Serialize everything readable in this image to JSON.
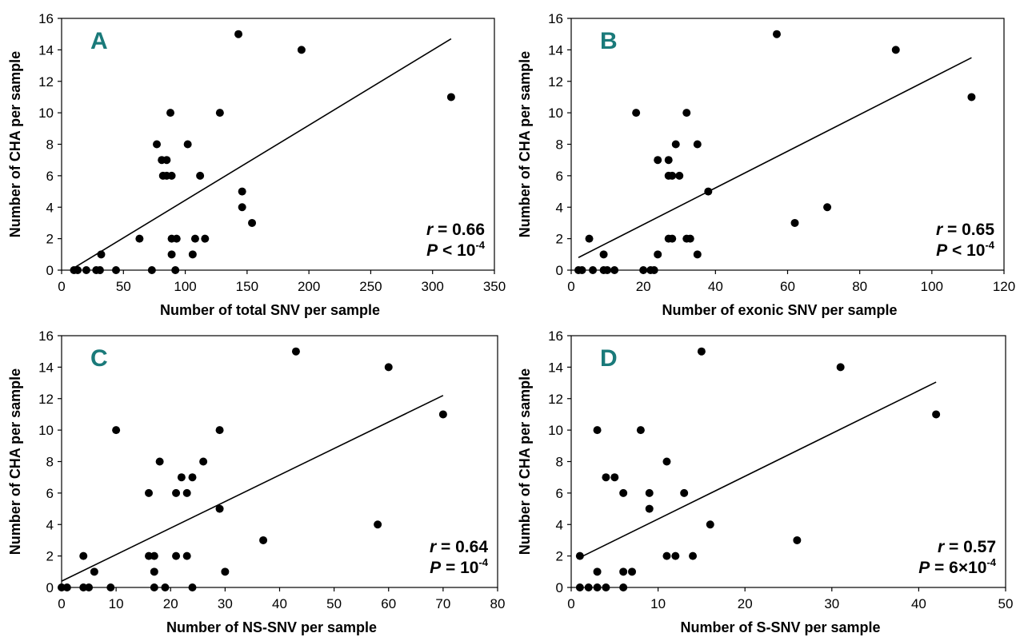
{
  "figure": {
    "accent": "#1a7a7a",
    "point_color": "#000000"
  },
  "chart_data": [
    {
      "panel": "A",
      "type": "scatter",
      "xlabel": "Number of total SNV per sample",
      "ylabel": "Number of CHA per sample",
      "xlim": [
        0,
        350
      ],
      "ylim": [
        0,
        16
      ],
      "xticks": [
        0,
        50,
        100,
        150,
        200,
        250,
        300,
        350
      ],
      "yticks": [
        0,
        2,
        4,
        6,
        8,
        10,
        12,
        14,
        16
      ],
      "points": [
        [
          10,
          0
        ],
        [
          13,
          0
        ],
        [
          20,
          0
        ],
        [
          28,
          0
        ],
        [
          31,
          0
        ],
        [
          44,
          0
        ],
        [
          73,
          0
        ],
        [
          92,
          0
        ],
        [
          32,
          1
        ],
        [
          89,
          1
        ],
        [
          106,
          1
        ],
        [
          63,
          2
        ],
        [
          89,
          2
        ],
        [
          93,
          2
        ],
        [
          108,
          2
        ],
        [
          116,
          2
        ],
        [
          154,
          3
        ],
        [
          146,
          4
        ],
        [
          146,
          5
        ],
        [
          82,
          6
        ],
        [
          85,
          6
        ],
        [
          89,
          6
        ],
        [
          112,
          6
        ],
        [
          81,
          7
        ],
        [
          85,
          7
        ],
        [
          77,
          8
        ],
        [
          102,
          8
        ],
        [
          88,
          10
        ],
        [
          128,
          10
        ],
        [
          315,
          11
        ],
        [
          194,
          14
        ],
        [
          143,
          15
        ]
      ],
      "trendline": {
        "x": [
          8,
          315
        ],
        "y": [
          0.05,
          14.7
        ]
      },
      "stats": {
        "r_label": "r",
        "r_value": " = 0.66",
        "p_label": "P",
        "p_rel": " < 10",
        "p_exp": "-4"
      }
    },
    {
      "panel": "B",
      "type": "scatter",
      "xlabel": "Number of exonic SNV per sample",
      "ylabel": "Number of CHA per sample",
      "xlim": [
        0,
        120
      ],
      "ylim": [
        0,
        16
      ],
      "xticks": [
        0,
        20,
        40,
        60,
        80,
        100,
        120
      ],
      "yticks": [
        0,
        2,
        4,
        6,
        8,
        10,
        12,
        14,
        16
      ],
      "points": [
        [
          2,
          0
        ],
        [
          3,
          0
        ],
        [
          6,
          0
        ],
        [
          9,
          0
        ],
        [
          10,
          0
        ],
        [
          12,
          0
        ],
        [
          20,
          0
        ],
        [
          22,
          0
        ],
        [
          23,
          0
        ],
        [
          9,
          1
        ],
        [
          24,
          1
        ],
        [
          35,
          1
        ],
        [
          5,
          2
        ],
        [
          27,
          2
        ],
        [
          28,
          2
        ],
        [
          32,
          2
        ],
        [
          33,
          2
        ],
        [
          62,
          3
        ],
        [
          71,
          4
        ],
        [
          38,
          5
        ],
        [
          27,
          6
        ],
        [
          28,
          6
        ],
        [
          30,
          6
        ],
        [
          24,
          7
        ],
        [
          27,
          7
        ],
        [
          29,
          8
        ],
        [
          35,
          8
        ],
        [
          18,
          10
        ],
        [
          32,
          10
        ],
        [
          111,
          11
        ],
        [
          90,
          14
        ],
        [
          57,
          15
        ]
      ],
      "trendline": {
        "x": [
          2,
          111
        ],
        "y": [
          0.8,
          13.5
        ]
      },
      "stats": {
        "r_label": "r",
        "r_value": " = 0.65",
        "p_label": "P",
        "p_rel": " < 10",
        "p_exp": "-4"
      }
    },
    {
      "panel": "C",
      "type": "scatter",
      "xlabel": "Number of NS-SNV per sample",
      "ylabel": "Number of CHA per sample",
      "xlim": [
        0,
        80
      ],
      "ylim": [
        0,
        16
      ],
      "xticks": [
        0,
        10,
        20,
        30,
        40,
        50,
        60,
        70,
        80
      ],
      "yticks": [
        0,
        2,
        4,
        6,
        8,
        10,
        12,
        14,
        16
      ],
      "points": [
        [
          0,
          0
        ],
        [
          1,
          0
        ],
        [
          4,
          0
        ],
        [
          5,
          0
        ],
        [
          9,
          0
        ],
        [
          17,
          0
        ],
        [
          19,
          0
        ],
        [
          24,
          0
        ],
        [
          6,
          1
        ],
        [
          17,
          1
        ],
        [
          30,
          1
        ],
        [
          4,
          2
        ],
        [
          16,
          2
        ],
        [
          17,
          2
        ],
        [
          21,
          2
        ],
        [
          23,
          2
        ],
        [
          37,
          3
        ],
        [
          58,
          4
        ],
        [
          29,
          5
        ],
        [
          16,
          6
        ],
        [
          21,
          6
        ],
        [
          23,
          6
        ],
        [
          22,
          7
        ],
        [
          24,
          7
        ],
        [
          18,
          8
        ],
        [
          26,
          8
        ],
        [
          10,
          10
        ],
        [
          29,
          10
        ],
        [
          70,
          11
        ],
        [
          60,
          14
        ],
        [
          43,
          15
        ]
      ],
      "trendline": {
        "x": [
          0,
          70
        ],
        "y": [
          0.4,
          12.2
        ]
      },
      "stats": {
        "r_label": "r",
        "r_value": " = 0.64",
        "p_label": "P",
        "p_rel": " = 10",
        "p_exp": "-4"
      }
    },
    {
      "panel": "D",
      "type": "scatter",
      "xlabel": "Number of S-SNV per sample",
      "ylabel": "Number of CHA per sample",
      "xlim": [
        0,
        50
      ],
      "ylim": [
        0,
        16
      ],
      "xticks": [
        0,
        10,
        20,
        30,
        40,
        50
      ],
      "yticks": [
        0,
        2,
        4,
        6,
        8,
        10,
        12,
        14,
        16
      ],
      "points": [
        [
          1,
          0
        ],
        [
          2,
          0
        ],
        [
          3,
          0
        ],
        [
          4,
          0
        ],
        [
          6,
          0
        ],
        [
          3,
          1
        ],
        [
          6,
          1
        ],
        [
          7,
          1
        ],
        [
          1,
          2
        ],
        [
          11,
          2
        ],
        [
          12,
          2
        ],
        [
          14,
          2
        ],
        [
          26,
          3
        ],
        [
          16,
          4
        ],
        [
          9,
          5
        ],
        [
          6,
          6
        ],
        [
          9,
          6
        ],
        [
          13,
          6
        ],
        [
          4,
          7
        ],
        [
          5,
          7
        ],
        [
          11,
          8
        ],
        [
          3,
          10
        ],
        [
          8,
          10
        ],
        [
          42,
          11
        ],
        [
          31,
          14
        ],
        [
          15,
          15
        ]
      ],
      "trendline": {
        "x": [
          1,
          42
        ],
        "y": [
          1.9,
          13.05
        ]
      },
      "stats": {
        "r_label": "r",
        "r_value": " = 0.57",
        "p_label": "P",
        "p_rel": " = 6×10",
        "p_exp": "-4"
      }
    }
  ]
}
